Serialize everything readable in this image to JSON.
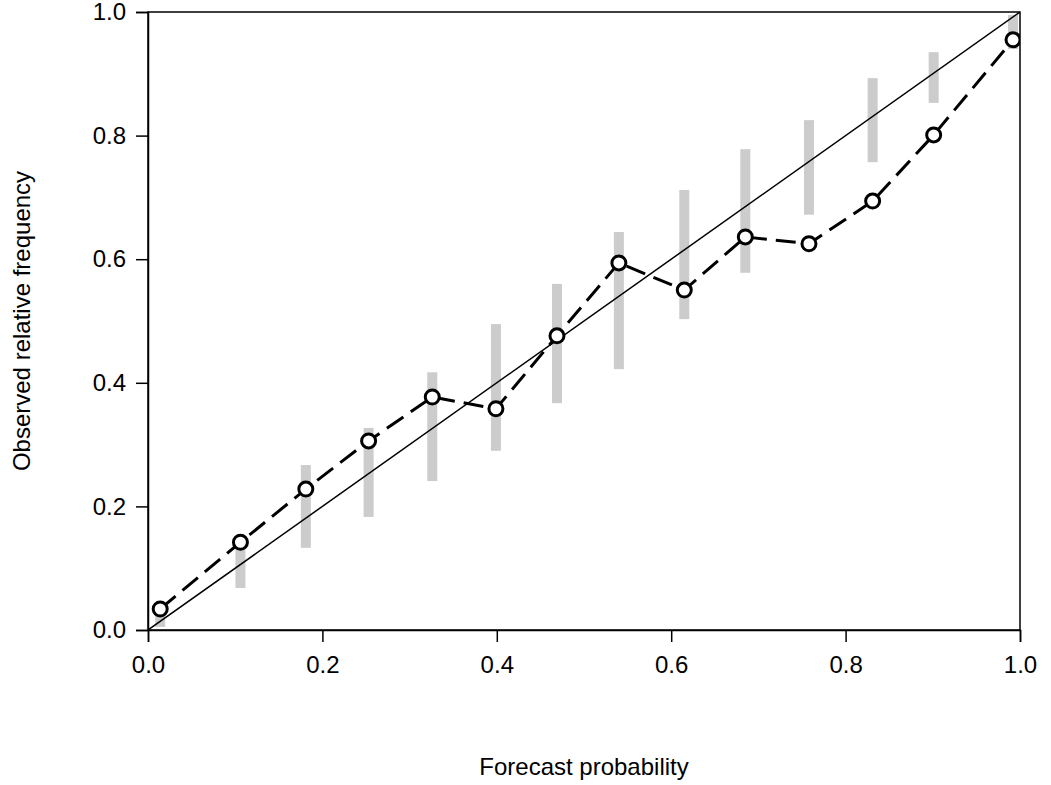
{
  "chart_data": {
    "type": "line",
    "x_label": "Forecast probability",
    "y_label": "Observed relative frequency",
    "x": [
      0.014,
      0.106,
      0.181,
      0.253,
      0.326,
      0.399,
      0.469,
      0.54,
      0.615,
      0.685,
      0.758,
      0.831,
      0.901,
      0.992
    ],
    "series": [
      {
        "color": "#000000",
        "marker": "circle",
        "line_style": "dashed",
        "values": [
          0.034,
          0.142,
          0.228,
          0.306,
          0.377,
          0.358,
          0.476,
          0.594,
          0.55,
          0.636,
          0.625,
          0.694,
          0.801,
          0.955
        ],
        "lower": [
          0.005,
          0.068,
          0.133,
          0.183,
          0.241,
          0.29,
          0.367,
          0.422,
          0.503,
          0.578,
          0.672,
          0.757,
          0.853,
          0.94
        ],
        "upper": [
          0.03,
          0.133,
          0.267,
          0.327,
          0.417,
          0.495,
          0.56,
          0.644,
          0.712,
          0.778,
          0.825,
          0.893,
          0.935,
          0.995
        ]
      }
    ],
    "xlim": [
      0,
      1
    ],
    "ylim": [
      0,
      1
    ],
    "xticks": [
      {
        "value": 0,
        "label": "0.0"
      },
      0.2,
      0.4,
      0.6,
      0.8,
      {
        "value": 1,
        "label": "1.0"
      }
    ],
    "yticks": [
      {
        "value": 0,
        "label": "0.0"
      },
      0.2,
      0.4,
      0.6,
      0.8,
      {
        "value": 1,
        "label": "1.0"
      }
    ],
    "grid": false
  }
}
